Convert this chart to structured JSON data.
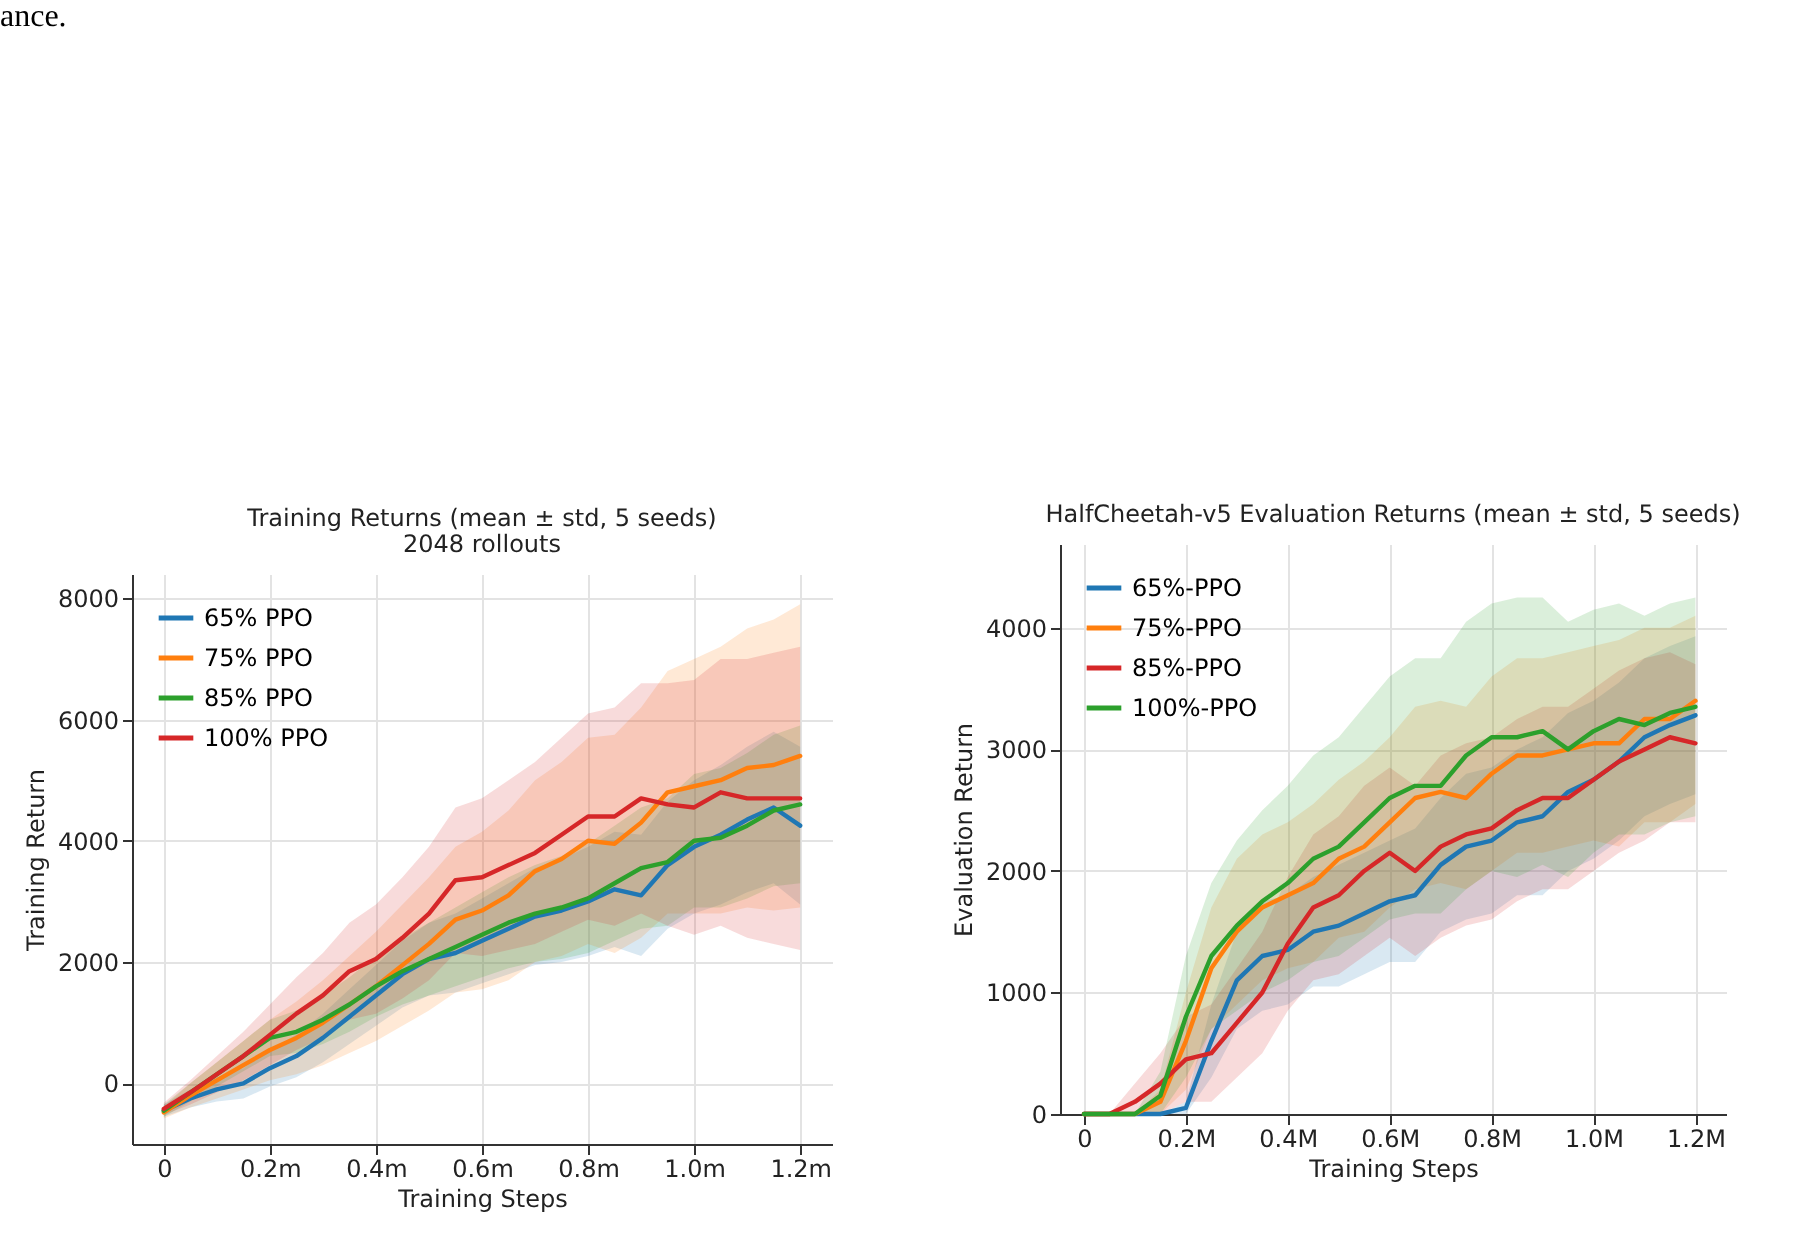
{
  "chart_data": [
    {
      "type": "line",
      "title": "Training Returns (mean ± std, 5 seeds)",
      "subtitle": "2048 rollouts",
      "xlabel": "Training Steps",
      "ylabel": "Training Return",
      "annotations": [
        "ance."
      ],
      "x": [
        0,
        0.05,
        0.1,
        0.15,
        0.2,
        0.25,
        0.3,
        0.35,
        0.4,
        0.45,
        0.5,
        0.55,
        0.6,
        0.65,
        0.7,
        0.75,
        0.8,
        0.85,
        0.9,
        0.95,
        1.0,
        1.05,
        1.1,
        1.15,
        1.2
      ],
      "series": [
        {
          "name": "65% PPO",
          "color": "#1f77b4",
          "values": [
            -450,
            -250,
            -100,
            0,
            250,
            450,
            750,
            1100,
            1450,
            1800,
            2050,
            2150,
            2350,
            2550,
            2750,
            2850,
            3000,
            3200,
            3100,
            3600,
            3900,
            4100,
            4350,
            4550,
            4250
          ],
          "lower": [
            -550,
            -400,
            -300,
            -250,
            -50,
            100,
            350,
            650,
            950,
            1250,
            1450,
            1500,
            1650,
            1800,
            1950,
            2000,
            2100,
            2250,
            2100,
            2550,
            2800,
            2950,
            3150,
            3300,
            2950
          ],
          "upper": [
            -350,
            -100,
            100,
            250,
            550,
            800,
            1150,
            1550,
            1950,
            2350,
            2650,
            2800,
            3050,
            3300,
            3550,
            3700,
            3900,
            4150,
            4100,
            4650,
            5000,
            5250,
            5550,
            5800,
            5550
          ]
        },
        {
          "name": "75% PPO",
          "color": "#ff7f0e",
          "values": [
            -480,
            -200,
            50,
            300,
            550,
            750,
            1000,
            1300,
            1600,
            1950,
            2300,
            2700,
            2850,
            3100,
            3500,
            3700,
            4000,
            3950,
            4300,
            4800,
            4900,
            5000,
            5200,
            5250,
            5400
          ],
          "lower": [
            -580,
            -400,
            -250,
            -100,
            50,
            150,
            300,
            500,
            700,
            950,
            1200,
            1500,
            1550,
            1700,
            2000,
            2100,
            2300,
            2150,
            2400,
            2800,
            2800,
            2800,
            2900,
            2850,
            2900
          ],
          "upper": [
            -380,
            0,
            350,
            700,
            1050,
            1350,
            1700,
            2100,
            2500,
            2950,
            3400,
            3900,
            4150,
            4500,
            5000,
            5300,
            5700,
            5750,
            6200,
            6800,
            7000,
            7200,
            7500,
            7650,
            7900
          ]
        },
        {
          "name": "85% PPO",
          "color": "#2ca02c",
          "values": [
            -450,
            -150,
            150,
            450,
            750,
            850,
            1050,
            1300,
            1600,
            1850,
            2050,
            2250,
            2450,
            2650,
            2800,
            2900,
            3050,
            3300,
            3550,
            3650,
            4000,
            4050,
            4250,
            4500,
            4600
          ],
          "lower": [
            -550,
            -300,
            -50,
            200,
            450,
            500,
            650,
            850,
            1100,
            1300,
            1450,
            1600,
            1750,
            1900,
            2000,
            2050,
            2150,
            2350,
            2550,
            2600,
            2900,
            2900,
            3050,
            3250,
            3300
          ],
          "upper": [
            -350,
            0,
            350,
            700,
            1050,
            1200,
            1450,
            1750,
            2100,
            2400,
            2650,
            2900,
            3150,
            3400,
            3600,
            3750,
            3950,
            4250,
            4550,
            4700,
            5100,
            5200,
            5450,
            5750,
            5900
          ]
        },
        {
          "name": "100% PPO",
          "color": "#d62728",
          "values": [
            -420,
            -150,
            150,
            450,
            800,
            1150,
            1450,
            1850,
            2050,
            2400,
            2800,
            3350,
            3400,
            3600,
            3800,
            4100,
            4400,
            4400,
            4700,
            4600,
            4550,
            4800,
            4700,
            4700,
            4700
          ],
          "lower": [
            -520,
            -350,
            -150,
            50,
            300,
            550,
            750,
            1050,
            1150,
            1400,
            1700,
            2150,
            2100,
            2200,
            2300,
            2500,
            2700,
            2600,
            2800,
            2600,
            2450,
            2600,
            2400,
            2300,
            2200
          ],
          "upper": [
            -320,
            50,
            450,
            850,
            1300,
            1750,
            2150,
            2650,
            2950,
            3400,
            3900,
            4550,
            4700,
            5000,
            5300,
            5700,
            6100,
            6200,
            6600,
            6600,
            6650,
            7000,
            7000,
            7100,
            7200
          ]
        }
      ],
      "xlim": [
        -0.06,
        1.26
      ],
      "xticks": [
        0,
        {
          "value": 0.2,
          "label": "0.2m"
        },
        {
          "value": 0.4,
          "label": "0.4m"
        },
        {
          "value": 0.6,
          "label": "0.6m"
        },
        {
          "value": 0.8,
          "label": "0.8m"
        },
        {
          "value": 1.0,
          "label": "1.0m"
        },
        {
          "value": 1.2,
          "label": "1.2m"
        }
      ],
      "ylim": [
        -1000,
        8400
      ],
      "yticks": [
        0,
        2000,
        4000,
        6000,
        8000
      ],
      "grid": true,
      "legend": "top left"
    },
    {
      "type": "line",
      "title": "HalfCheetah-v5 Evaluation Returns (mean ± std, 5 seeds)",
      "xlabel": "Training Steps",
      "ylabel": "Evaluation Return",
      "x": [
        0,
        0.05,
        0.1,
        0.15,
        0.2,
        0.25,
        0.3,
        0.35,
        0.4,
        0.45,
        0.5,
        0.55,
        0.6,
        0.65,
        0.7,
        0.75,
        0.8,
        0.85,
        0.9,
        0.95,
        1.0,
        1.05,
        1.1,
        1.15,
        1.2
      ],
      "series": [
        {
          "name": "65%-PPO",
          "color": "#1f77b4",
          "values": [
            0,
            0,
            0,
            0,
            50,
            600,
            1100,
            1300,
            1350,
            1500,
            1550,
            1650,
            1750,
            1800,
            2050,
            2200,
            2250,
            2400,
            2450,
            2650,
            2750,
            2900,
            3100,
            3200,
            3280
          ],
          "lower": [
            0,
            0,
            0,
            0,
            0,
            300,
            700,
            850,
            900,
            1050,
            1050,
            1150,
            1250,
            1250,
            1500,
            1600,
            1650,
            1800,
            1800,
            2000,
            2100,
            2250,
            2450,
            2550,
            2630
          ],
          "upper": [
            0,
            0,
            0,
            0,
            100,
            900,
            1500,
            1750,
            1800,
            1950,
            2050,
            2150,
            2250,
            2350,
            2600,
            2800,
            2850,
            3000,
            3100,
            3300,
            3400,
            3550,
            3750,
            3850,
            3930
          ]
        },
        {
          "name": "75%-PPO",
          "color": "#ff7f0e",
          "values": [
            0,
            0,
            0,
            100,
            600,
            1200,
            1500,
            1700,
            1800,
            1900,
            2100,
            2200,
            2400,
            2600,
            2650,
            2600,
            2800,
            2950,
            2950,
            3000,
            3050,
            3050,
            3250,
            3250,
            3400
          ],
          "lower": [
            0,
            0,
            0,
            0,
            200,
            700,
            900,
            1100,
            1200,
            1250,
            1450,
            1500,
            1700,
            1850,
            1900,
            1850,
            2000,
            2150,
            2150,
            2200,
            2250,
            2200,
            2400,
            2400,
            2550
          ],
          "upper": [
            0,
            0,
            0,
            200,
            1000,
            1700,
            2100,
            2300,
            2400,
            2550,
            2750,
            2900,
            3100,
            3350,
            3400,
            3350,
            3600,
            3750,
            3750,
            3800,
            3850,
            3900,
            4000,
            4000,
            4100
          ]
        },
        {
          "name": "85%-PPO",
          "color": "#d62728",
          "values": [
            0,
            0,
            100,
            250,
            450,
            500,
            750,
            1000,
            1400,
            1700,
            1800,
            2000,
            2150,
            2000,
            2200,
            2300,
            2350,
            2500,
            2600,
            2600,
            2750,
            2900,
            3000,
            3100,
            3050
          ],
          "lower": [
            0,
            0,
            0,
            0,
            100,
            100,
            300,
            500,
            850,
            1100,
            1150,
            1300,
            1450,
            1300,
            1450,
            1550,
            1600,
            1750,
            1850,
            1850,
            2000,
            2150,
            2250,
            2400,
            2400
          ],
          "upper": [
            0,
            0,
            250,
            500,
            800,
            900,
            1200,
            1500,
            1950,
            2300,
            2450,
            2700,
            2850,
            2700,
            2950,
            3050,
            3100,
            3250,
            3350,
            3350,
            3500,
            3650,
            3750,
            3800,
            3700
          ]
        },
        {
          "name": "100%-PPO",
          "color": "#2ca02c",
          "values": [
            0,
            0,
            0,
            150,
            800,
            1300,
            1550,
            1750,
            1900,
            2100,
            2200,
            2400,
            2600,
            2700,
            2700,
            2950,
            3100,
            3100,
            3150,
            3000,
            3150,
            3250,
            3200,
            3300,
            3350
          ],
          "lower": [
            0,
            0,
            0,
            0,
            300,
            700,
            850,
            1000,
            1100,
            1250,
            1300,
            1450,
            1600,
            1650,
            1650,
            1850,
            2000,
            1950,
            2050,
            1950,
            2150,
            2300,
            2300,
            2400,
            2450
          ],
          "upper": [
            0,
            0,
            0,
            350,
            1300,
            1900,
            2250,
            2500,
            2700,
            2950,
            3100,
            3350,
            3600,
            3750,
            3750,
            4050,
            4200,
            4250,
            4250,
            4050,
            4150,
            4200,
            4100,
            4200,
            4250
          ]
        }
      ],
      "xlim": [
        -0.047,
        1.26
      ],
      "xticks": [
        0,
        {
          "value": 0.2,
          "label": "0.2M"
        },
        {
          "value": 0.4,
          "label": "0.4M"
        },
        {
          "value": 0.6,
          "label": "0.6M"
        },
        {
          "value": 0.8,
          "label": "0.8M"
        },
        {
          "value": 1.0,
          "label": "1.0M"
        },
        {
          "value": 1.2,
          "label": "1.2M"
        }
      ],
      "ylim": [
        0,
        4690
      ],
      "yticks": [
        0,
        1000,
        2000,
        3000,
        4000
      ],
      "grid": true,
      "legend": "top left"
    }
  ]
}
